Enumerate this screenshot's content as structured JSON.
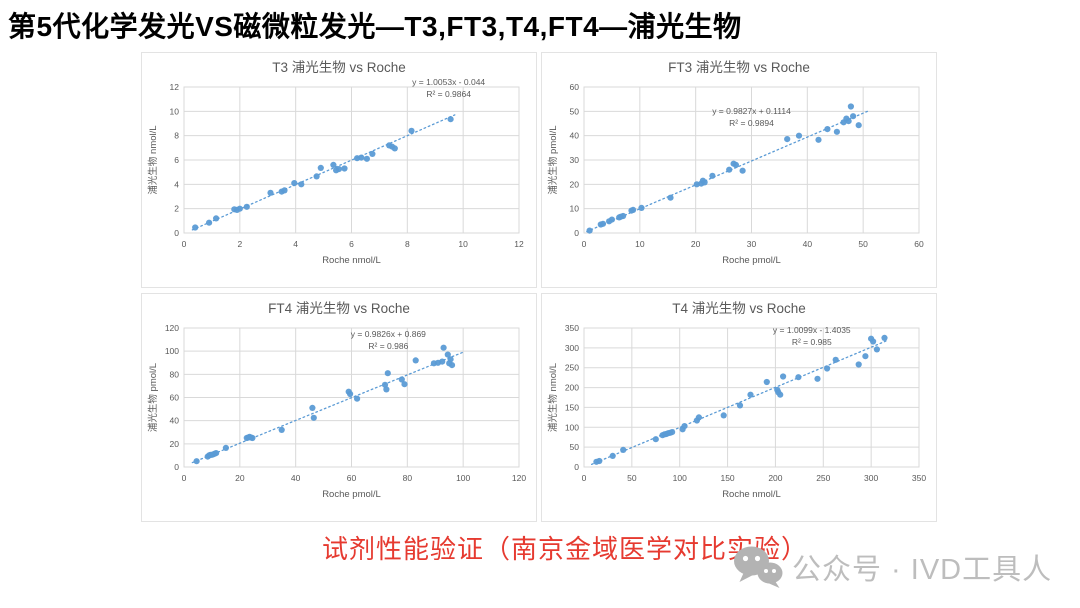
{
  "page": {
    "title": "第5代化学发光VS磁微粒发光—T3,FT3,T4,FT4—浦光生物",
    "caption": "试剂性能验证（南京金域医学对比实验）",
    "watermark": {
      "icon": "wechat-logo-icon",
      "label": "公众号 · IVD工具人"
    }
  },
  "colors": {
    "point_blue": "#5B9BD5",
    "trend_blue": "#5B9BD5",
    "gridline_gray": "#D9D9D9",
    "plot_border_gray": "#D9D9D9",
    "axis_text_gray": "#595959",
    "chart_title_gray": "#595959",
    "caption_red": "#E63A30",
    "watermark_gray": "#BDBDBD"
  },
  "chart_data": [
    {
      "type": "scatter",
      "title": "T3 浦光生物 vs Roche",
      "xlabel": "Roche nmol/L",
      "ylabel": "浦光生物 nmol/L",
      "xlim": [
        0,
        12
      ],
      "ylim": [
        0,
        12
      ],
      "xstep": 2,
      "ystep": 2,
      "grid": true,
      "legend": "none",
      "equation": "y = 1.0053x - 0.044",
      "r2": "R² = 0.9864",
      "eq_pos": {
        "x": 0.79,
        "y": 0.0
      },
      "trend": {
        "slope": 1.0053,
        "intercept": -0.044,
        "x_start": 0.3,
        "x_end": 9.7
      },
      "points": [
        [
          0.4,
          0.45
        ],
        [
          0.9,
          0.85
        ],
        [
          1.15,
          1.2
        ],
        [
          1.8,
          1.95
        ],
        [
          1.9,
          1.9
        ],
        [
          2.0,
          2.0
        ],
        [
          2.25,
          2.15
        ],
        [
          3.1,
          3.3
        ],
        [
          3.5,
          3.4
        ],
        [
          3.6,
          3.5
        ],
        [
          3.95,
          4.1
        ],
        [
          4.2,
          4.0
        ],
        [
          4.75,
          4.65
        ],
        [
          4.9,
          5.35
        ],
        [
          5.35,
          5.6
        ],
        [
          5.45,
          5.15
        ],
        [
          5.55,
          5.25
        ],
        [
          5.75,
          5.3
        ],
        [
          6.2,
          6.15
        ],
        [
          6.35,
          6.2
        ],
        [
          6.55,
          6.1
        ],
        [
          6.75,
          6.5
        ],
        [
          7.35,
          7.2
        ],
        [
          7.45,
          7.1
        ],
        [
          7.55,
          6.95
        ],
        [
          8.15,
          8.4
        ],
        [
          9.55,
          9.35
        ]
      ]
    },
    {
      "type": "scatter",
      "title": "FT3 浦光生物 vs Roche",
      "xlabel": "Roche pmol/L",
      "ylabel": "浦光生物 pmol/L",
      "xlim": [
        0,
        60
      ],
      "ylim": [
        0,
        60
      ],
      "xstep": 10,
      "ystep": 10,
      "grid": true,
      "legend": "none",
      "equation": "y = 0.9827x + 0.1114",
      "r2": "R² = 0.9894",
      "eq_pos": {
        "x": 0.5,
        "y": 0.2
      },
      "trend": {
        "slope": 0.9827,
        "intercept": 0.1114,
        "x_start": 0.5,
        "x_end": 51
      },
      "points": [
        [
          1,
          1
        ],
        [
          3,
          3.5
        ],
        [
          3.4,
          3.8
        ],
        [
          4.5,
          4.8
        ],
        [
          5,
          5.5
        ],
        [
          6.3,
          6.4
        ],
        [
          6.6,
          6.7
        ],
        [
          7,
          7
        ],
        [
          8.5,
          9.2
        ],
        [
          8.8,
          9.5
        ],
        [
          10.3,
          10.3
        ],
        [
          15.5,
          14.5
        ],
        [
          20.2,
          20
        ],
        [
          21,
          20.3
        ],
        [
          21.3,
          21.5
        ],
        [
          21.6,
          20.8
        ],
        [
          23,
          23.5
        ],
        [
          26,
          26
        ],
        [
          26.8,
          28.5
        ],
        [
          27.2,
          28
        ],
        [
          28.4,
          25.6
        ],
        [
          36.4,
          38.6
        ],
        [
          38.5,
          40
        ],
        [
          42,
          38.3
        ],
        [
          43.6,
          42.7
        ],
        [
          45.3,
          41.6
        ],
        [
          46.5,
          45.5
        ],
        [
          47,
          47
        ],
        [
          47.4,
          46
        ],
        [
          47.8,
          52
        ],
        [
          48.2,
          48
        ],
        [
          49.2,
          44.3
        ]
      ]
    },
    {
      "type": "scatter",
      "title": "FT4 浦光生物 vs Roche",
      "xlabel": "Roche pmol/L",
      "ylabel": "浦光生物 pmol/L",
      "xlim": [
        0,
        120
      ],
      "ylim": [
        0,
        120
      ],
      "xstep": 20,
      "ystep": 20,
      "grid": true,
      "legend": "none",
      "equation": "y = 0.9826x + 0.869",
      "r2": "R² = 0.986",
      "eq_pos": {
        "x": 0.61,
        "y": 0.08
      },
      "trend": {
        "slope": 0.9826,
        "intercept": 0.869,
        "x_start": 3,
        "x_end": 100
      },
      "points": [
        [
          4.5,
          5
        ],
        [
          8.5,
          9
        ],
        [
          9,
          10
        ],
        [
          9.5,
          10.5
        ],
        [
          10,
          10.5
        ],
        [
          10.5,
          11
        ],
        [
          11,
          11.5
        ],
        [
          11.5,
          12
        ],
        [
          15,
          16.5
        ],
        [
          22.5,
          25
        ],
        [
          23,
          25.5
        ],
        [
          23.5,
          26
        ],
        [
          24,
          25.5
        ],
        [
          24.5,
          25
        ],
        [
          35,
          32
        ],
        [
          46,
          51
        ],
        [
          46.5,
          42.5
        ],
        [
          59,
          65
        ],
        [
          59.5,
          63
        ],
        [
          62,
          59
        ],
        [
          72,
          71
        ],
        [
          72.5,
          67
        ],
        [
          73,
          81
        ],
        [
          78,
          75.5
        ],
        [
          79,
          71.5
        ],
        [
          83,
          92
        ],
        [
          89.5,
          89.5
        ],
        [
          91,
          90
        ],
        [
          92.5,
          91
        ],
        [
          93,
          103
        ],
        [
          94.5,
          97
        ],
        [
          95,
          89.5
        ],
        [
          95.5,
          93
        ],
        [
          96,
          88
        ]
      ]
    },
    {
      "type": "scatter",
      "title": "T4 浦光生物 vs Roche",
      "xlabel": "Roche nmol/L",
      "ylabel": "浦光生物 nmol/L",
      "xlim": [
        0,
        350
      ],
      "ylim": [
        0,
        350
      ],
      "xstep": 50,
      "ystep": 50,
      "grid": true,
      "legend": "none",
      "equation": "y = 1.0099x - 1.4035",
      "r2": "R² = 0.985",
      "eq_pos": {
        "x": 0.68,
        "y": 0.05
      },
      "trend": {
        "slope": 1.0099,
        "intercept": -1.4035,
        "x_start": 8,
        "x_end": 318
      },
      "points": [
        [
          13,
          13
        ],
        [
          16,
          15
        ],
        [
          30,
          28
        ],
        [
          41,
          43
        ],
        [
          75,
          70
        ],
        [
          82,
          80
        ],
        [
          84,
          82
        ],
        [
          86,
          83
        ],
        [
          88,
          85
        ],
        [
          90,
          86
        ],
        [
          92,
          88
        ],
        [
          103,
          95
        ],
        [
          105,
          103
        ],
        [
          118,
          117
        ],
        [
          120,
          125
        ],
        [
          146,
          130
        ],
        [
          163,
          155
        ],
        [
          174,
          182
        ],
        [
          191,
          214
        ],
        [
          202,
          194
        ],
        [
          203,
          188
        ],
        [
          205,
          182
        ],
        [
          208,
          228
        ],
        [
          224,
          226
        ],
        [
          244,
          222
        ],
        [
          254,
          248
        ],
        [
          263,
          270
        ],
        [
          287,
          258
        ],
        [
          294,
          279
        ],
        [
          300,
          323
        ],
        [
          302,
          316
        ],
        [
          306,
          296
        ],
        [
          314,
          325
        ]
      ]
    }
  ]
}
